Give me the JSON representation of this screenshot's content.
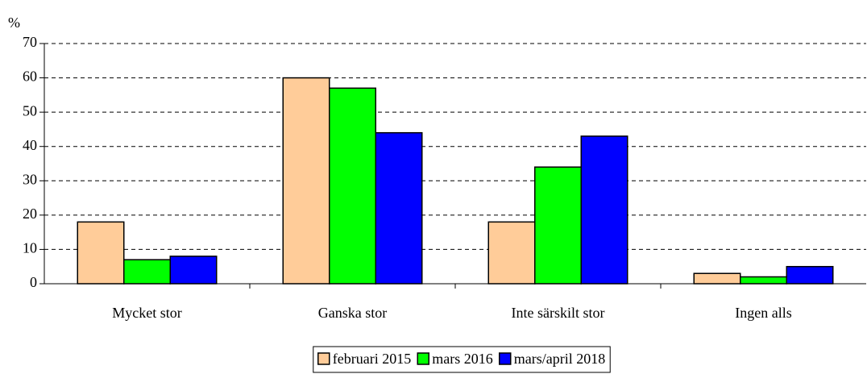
{
  "chart_data": {
    "type": "bar",
    "y_axis_label": "%",
    "categories": [
      "Mycket stor",
      "Ganska stor",
      "Inte särskilt stor",
      "Ingen alls"
    ],
    "series": [
      {
        "name": "februari 2015",
        "color": "#ffcc99",
        "values": [
          18,
          60,
          18,
          3
        ]
      },
      {
        "name": "mars 2016",
        "color": "#00ff00",
        "values": [
          7,
          57,
          34,
          2
        ]
      },
      {
        "name": "mars/april 2018",
        "color": "#0000ff",
        "values": [
          8,
          44,
          43,
          5
        ]
      }
    ],
    "ylim": [
      0,
      70
    ],
    "yticks": [
      0,
      10,
      20,
      30,
      40,
      50,
      60,
      70
    ],
    "grid": true,
    "legend": "bottom"
  }
}
